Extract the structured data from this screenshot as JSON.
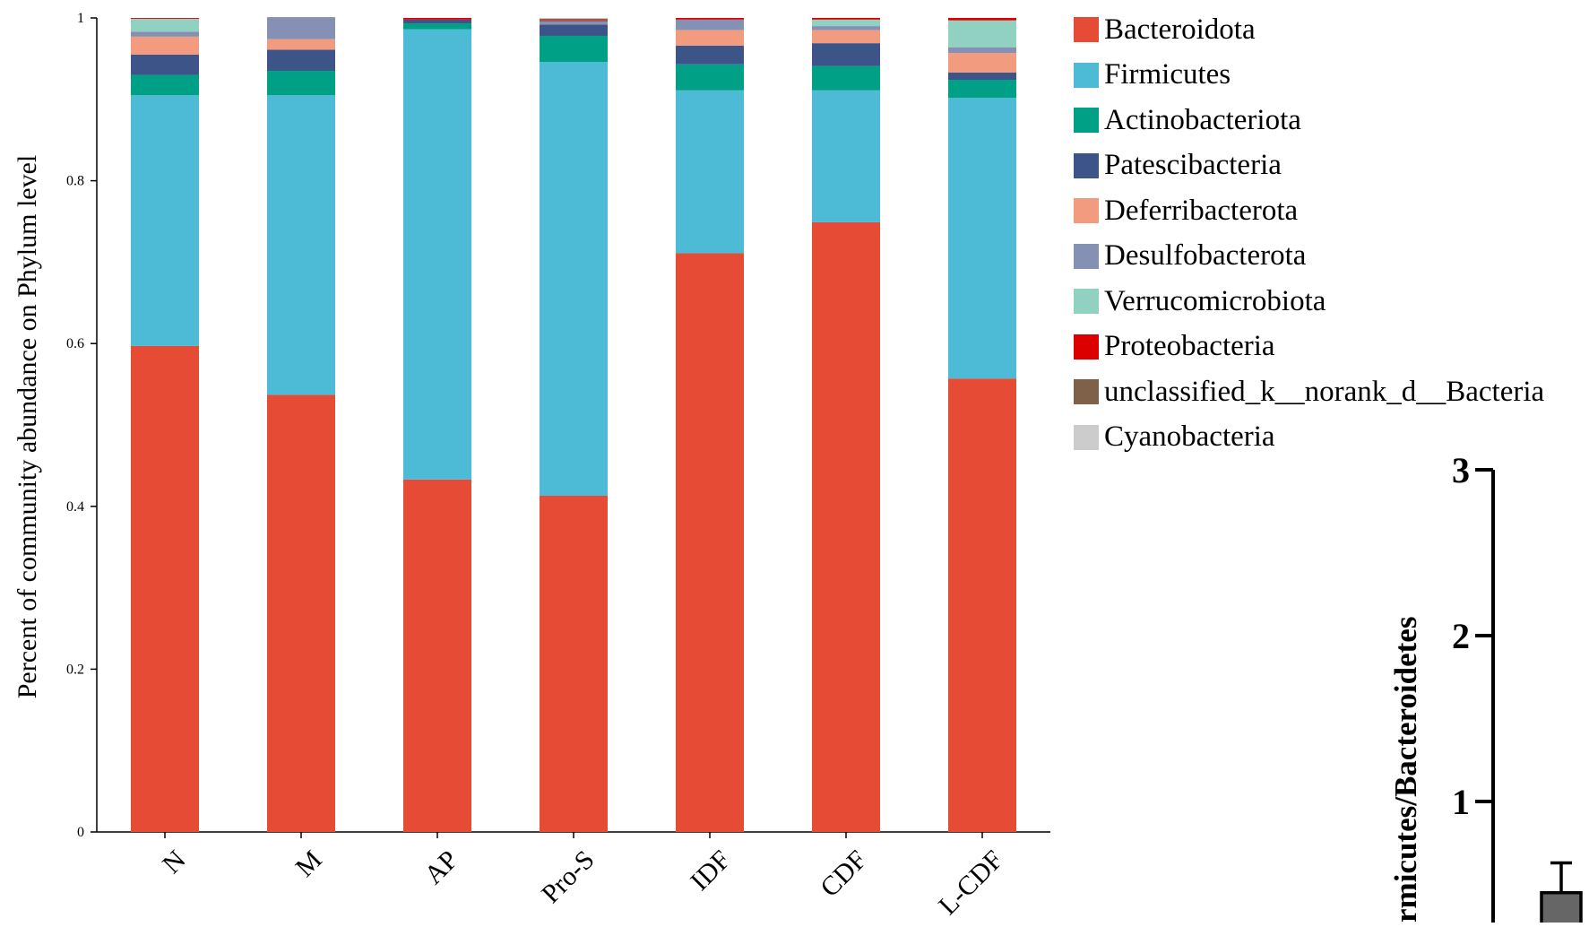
{
  "chart_data": [
    {
      "type": "bar",
      "stacked": true,
      "ylabel": "Percent of community abundance on Phylum level",
      "xlabel": "",
      "ylim": [
        0,
        1
      ],
      "yticks": [
        "0",
        "0.2",
        "0.4",
        "0.6",
        "0.8",
        "1"
      ],
      "categories": [
        "N",
        "M",
        "AP",
        "Pro-S",
        "IDF",
        "CDF",
        "L-CDF"
      ],
      "legend_position": "right",
      "series": [
        {
          "name": "Bacteroidota",
          "color": "#E64B35",
          "values": [
            0.597,
            0.537,
            0.433,
            0.413,
            0.711,
            0.749,
            0.557
          ]
        },
        {
          "name": "Firmicutes",
          "color": "#4DBBD5",
          "values": [
            0.308,
            0.368,
            0.553,
            0.533,
            0.2,
            0.162,
            0.345
          ]
        },
        {
          "name": "Actinobacteriota",
          "color": "#00A087",
          "values": [
            0.025,
            0.03,
            0.007,
            0.032,
            0.032,
            0.03,
            0.022
          ]
        },
        {
          "name": "Patescibacteria",
          "color": "#3C5488",
          "values": [
            0.025,
            0.026,
            0.005,
            0.014,
            0.023,
            0.028,
            0.009
          ]
        },
        {
          "name": "Deferribacterota",
          "color": "#F39B7F",
          "values": [
            0.022,
            0.013,
            0.0,
            0.0,
            0.019,
            0.016,
            0.024
          ]
        },
        {
          "name": "Desulfobacterota",
          "color": "#8491B4",
          "values": [
            0.006,
            0.027,
            0.0,
            0.004,
            0.013,
            0.005,
            0.007
          ]
        },
        {
          "name": "Verrucomicrobiota",
          "color": "#91D1C2",
          "values": [
            0.016,
            0.0,
            0.0,
            0.0,
            0.0,
            0.008,
            0.033
          ]
        },
        {
          "name": "Proteobacteria",
          "color": "#DC0000",
          "values": [
            0.001,
            0.0,
            0.002,
            0.001,
            0.002,
            0.002,
            0.003
          ]
        },
        {
          "name": "unclassified_k__norank_d__Bacteria",
          "color": "#7E6148",
          "values": [
            0.0,
            0.0,
            0.0,
            0.002,
            0.0,
            0.0,
            0.0
          ]
        },
        {
          "name": "Cyanobacteria",
          "color": "#CCCCCC",
          "values": [
            0.0,
            0.0,
            0.0,
            0.001,
            0.0,
            0.0,
            0.0
          ]
        }
      ]
    },
    {
      "type": "bar",
      "ylabel": "Firmicutes/Bacteroidetes",
      "ylabel_visible": "rmicutes/Bacteroidetes",
      "ylim": [
        0,
        3
      ],
      "yticks": [
        "1",
        "2",
        "3"
      ],
      "categories": [
        ""
      ],
      "values": [
        0.45
      ],
      "error": [
        0.18
      ],
      "bar_color": "#666666"
    }
  ]
}
